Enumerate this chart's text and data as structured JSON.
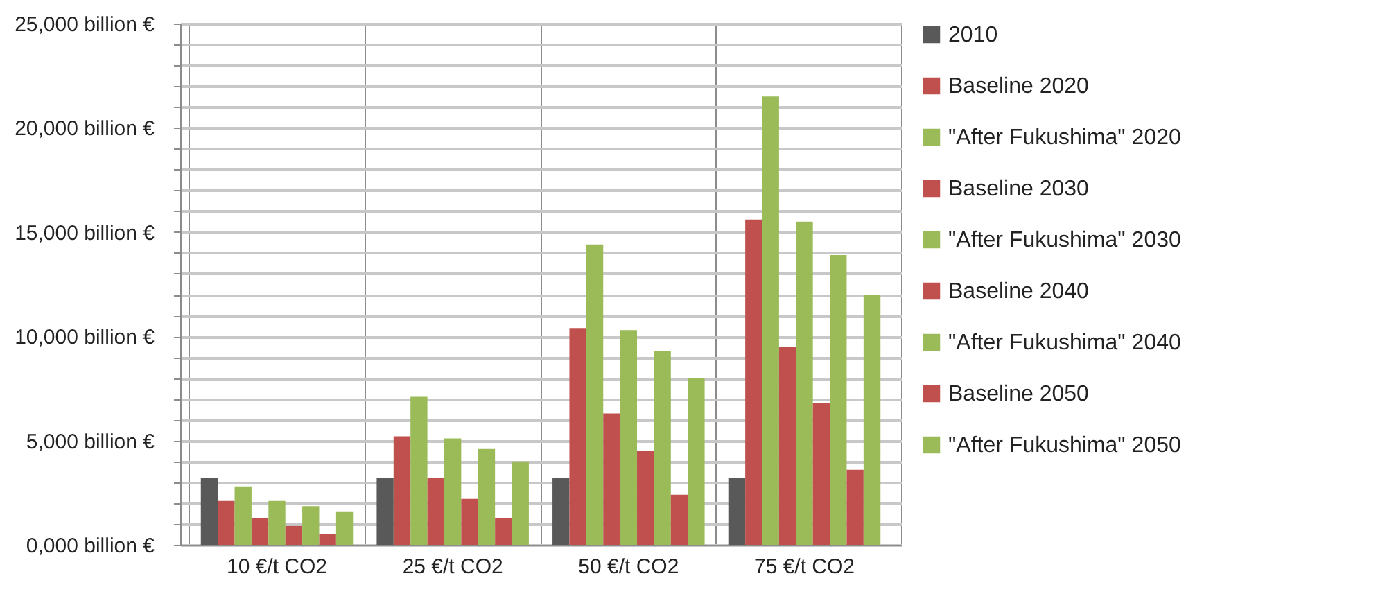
{
  "chart_data": {
    "type": "bar",
    "categories": [
      "10 €/t CO2",
      "25 €/t CO2",
      "50 €/t CO2",
      "75 €/t CO2"
    ],
    "series": [
      {
        "name": "2010",
        "color": "#595959",
        "values": [
          3200,
          3200,
          3200,
          3200
        ]
      },
      {
        "name": "Baseline 2020",
        "color": "#c0504d",
        "values": [
          2100,
          5200,
          10400,
          15600
        ]
      },
      {
        "name": "\"After Fukushima\"  2020",
        "color": "#9bbb59",
        "values": [
          2800,
          7100,
          14400,
          21500
        ]
      },
      {
        "name": "Baseline 2030",
        "color": "#c0504d",
        "values": [
          1300,
          3200,
          6300,
          9500
        ]
      },
      {
        "name": "\"After Fukushima\"  2030",
        "color": "#9bbb59",
        "values": [
          2100,
          5100,
          10300,
          15500
        ]
      },
      {
        "name": "Baseline 2040",
        "color": "#c0504d",
        "values": [
          900,
          2200,
          4500,
          6800
        ]
      },
      {
        "name": "\"After Fukushima\"  2040",
        "color": "#9bbb59",
        "values": [
          1850,
          4600,
          9300,
          13900
        ]
      },
      {
        "name": "Baseline 2050",
        "color": "#c0504d",
        "values": [
          500,
          1300,
          2400,
          3600
        ]
      },
      {
        "name": "\"After Fukushima\"  2050",
        "color": "#9bbb59",
        "values": [
          1600,
          4000,
          8000,
          12000
        ]
      }
    ],
    "ylim": [
      0,
      25000
    ],
    "yticks": [
      {
        "value": 0,
        "label": "0,000 billion €"
      },
      {
        "value": 1000,
        "label": null
      },
      {
        "value": 2000,
        "label": null
      },
      {
        "value": 3000,
        "label": null
      },
      {
        "value": 4000,
        "label": null
      },
      {
        "value": 5000,
        "label": "5,000 billion €"
      },
      {
        "value": 6000,
        "label": null
      },
      {
        "value": 7000,
        "label": null
      },
      {
        "value": 8000,
        "label": null
      },
      {
        "value": 9000,
        "label": null
      },
      {
        "value": 10000,
        "label": "10,000 billion €"
      },
      {
        "value": 11000,
        "label": null
      },
      {
        "value": 12000,
        "label": null
      },
      {
        "value": 13000,
        "label": null
      },
      {
        "value": 14000,
        "label": null
      },
      {
        "value": 15000,
        "label": "15,000 billion €"
      },
      {
        "value": 16000,
        "label": null
      },
      {
        "value": 17000,
        "label": null
      },
      {
        "value": 18000,
        "label": null
      },
      {
        "value": 19000,
        "label": null
      },
      {
        "value": 20000,
        "label": "20,000 billion €"
      },
      {
        "value": 21000,
        "label": null
      },
      {
        "value": 22000,
        "label": null
      },
      {
        "value": 23000,
        "label": null
      },
      {
        "value": 24000,
        "label": null
      },
      {
        "value": 25000,
        "label": "25,000 billion €"
      }
    ],
    "grid": true,
    "legend": "right"
  }
}
